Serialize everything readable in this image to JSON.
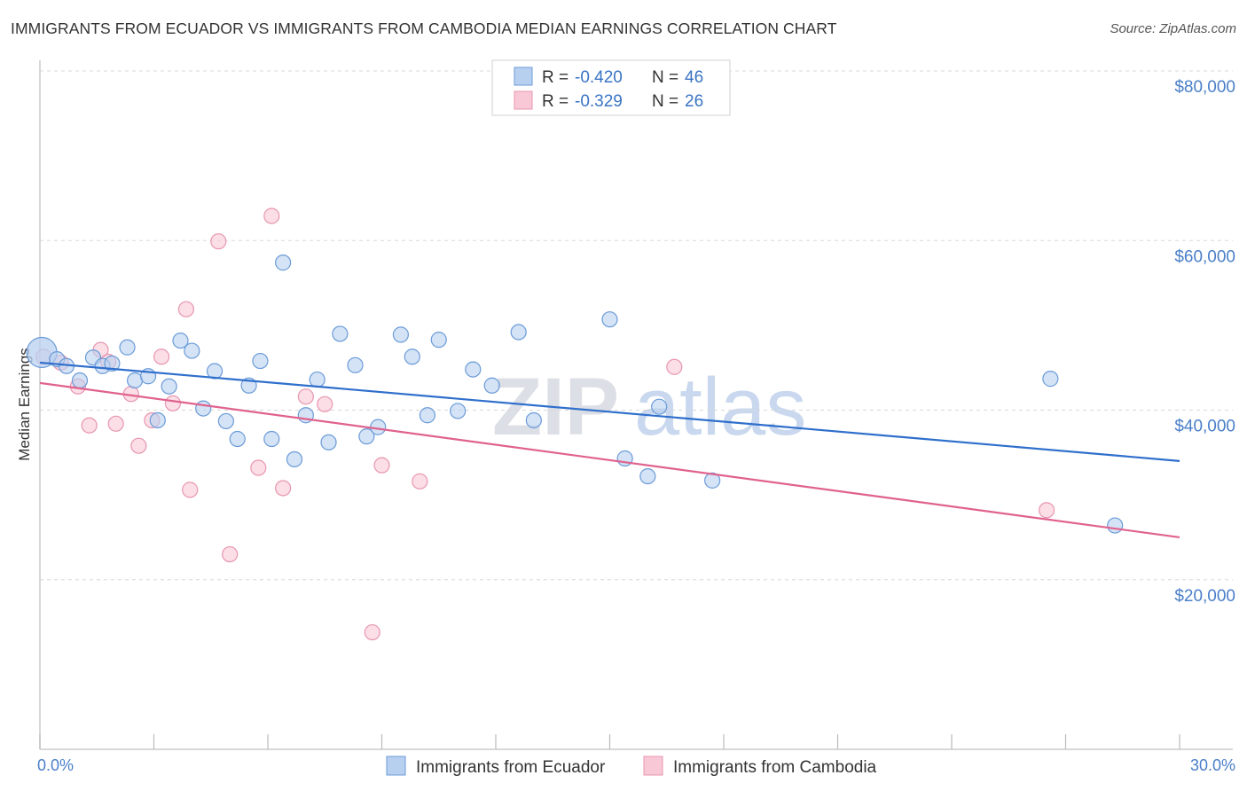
{
  "header": {
    "title": "IMMIGRANTS FROM ECUADOR VS IMMIGRANTS FROM CAMBODIA MEDIAN EARNINGS CORRELATION CHART",
    "source": "Source: ZipAtlas.com"
  },
  "watermark": {
    "zip": "ZIP",
    "atlas": "atlas"
  },
  "legend": {
    "ecuador": {
      "r_label": "R =",
      "r_value": "-0.420",
      "n_label": "N =",
      "n_value": "46"
    },
    "cambodia": {
      "r_label": "R =",
      "r_value": "-0.329",
      "n_label": "N =",
      "n_value": "26"
    }
  },
  "colors": {
    "ecuador_fill": "#b8d0f0",
    "ecuador_stroke": "#6b9bd8",
    "ecuador_line": "#2f6fcc",
    "cambodia_fill": "#f8c8d6",
    "cambodia_stroke": "#e896b0",
    "cambodia_line": "#e0628e",
    "axis_text": "#4a7fc9",
    "grid": "#d8d8d8"
  },
  "chart_data": {
    "type": "scatter",
    "title": "IMMIGRANTS FROM ECUADOR VS IMMIGRANTS FROM CAMBODIA MEDIAN EARNINGS CORRELATION CHART",
    "xlabel": "",
    "ylabel": "Median Earnings",
    "xlim": [
      0,
      30
    ],
    "ylim": [
      0,
      80000
    ],
    "x_tick_labels": [
      "0.0%",
      "30.0%"
    ],
    "y_ticks": [
      20000,
      40000,
      60000,
      80000
    ],
    "y_tick_labels": [
      "$20,000",
      "$40,000",
      "$60,000",
      "$80,000"
    ],
    "grid": true,
    "legend_position": "bottom",
    "series": [
      {
        "name": "Immigrants from Ecuador",
        "points": [
          [
            0.05,
            46800
          ],
          [
            0.45,
            46000
          ],
          [
            0.7,
            45200
          ],
          [
            1.05,
            43500
          ],
          [
            1.4,
            46200
          ],
          [
            1.65,
            45200
          ],
          [
            1.9,
            45500
          ],
          [
            2.3,
            47400
          ],
          [
            2.5,
            43500
          ],
          [
            2.85,
            44000
          ],
          [
            3.1,
            38800
          ],
          [
            3.4,
            42800
          ],
          [
            3.7,
            48200
          ],
          [
            4.0,
            47000
          ],
          [
            4.3,
            40200
          ],
          [
            4.6,
            44600
          ],
          [
            4.9,
            38700
          ],
          [
            5.2,
            36600
          ],
          [
            5.5,
            42900
          ],
          [
            5.8,
            45800
          ],
          [
            6.1,
            36600
          ],
          [
            6.4,
            57400
          ],
          [
            6.7,
            34200
          ],
          [
            7.0,
            39400
          ],
          [
            7.3,
            43600
          ],
          [
            7.6,
            36200
          ],
          [
            7.9,
            49000
          ],
          [
            8.3,
            45300
          ],
          [
            8.6,
            36900
          ],
          [
            8.9,
            38000
          ],
          [
            9.5,
            48900
          ],
          [
            9.8,
            46300
          ],
          [
            10.2,
            39400
          ],
          [
            10.5,
            48300
          ],
          [
            11.0,
            39900
          ],
          [
            11.4,
            44800
          ],
          [
            11.9,
            42900
          ],
          [
            12.6,
            49200
          ],
          [
            13.0,
            38800
          ],
          [
            15.0,
            50700
          ],
          [
            15.4,
            34300
          ],
          [
            16.0,
            32200
          ],
          [
            16.3,
            40400
          ],
          [
            17.7,
            31700
          ],
          [
            26.6,
            43700
          ],
          [
            28.3,
            26400
          ]
        ]
      },
      {
        "name": "Immigrants from Cambodia",
        "points": [
          [
            0.1,
            46300
          ],
          [
            0.55,
            45600
          ],
          [
            1.0,
            42800
          ],
          [
            1.3,
            38200
          ],
          [
            1.6,
            47100
          ],
          [
            1.8,
            45700
          ],
          [
            2.0,
            38400
          ],
          [
            2.4,
            41900
          ],
          [
            2.6,
            35800
          ],
          [
            2.95,
            38800
          ],
          [
            3.2,
            46300
          ],
          [
            3.5,
            40800
          ],
          [
            3.85,
            51900
          ],
          [
            3.95,
            30600
          ],
          [
            4.7,
            59900
          ],
          [
            5.0,
            23000
          ],
          [
            5.75,
            33200
          ],
          [
            6.1,
            62900
          ],
          [
            6.4,
            30800
          ],
          [
            7.0,
            41600
          ],
          [
            7.5,
            40700
          ],
          [
            8.75,
            13800
          ],
          [
            9.0,
            33500
          ],
          [
            10.0,
            31600
          ],
          [
            16.7,
            45100
          ],
          [
            26.5,
            28200
          ]
        ]
      }
    ],
    "trend_lines": [
      {
        "series": "Immigrants from Ecuador",
        "x": [
          0,
          30
        ],
        "y": [
          45600,
          34000
        ]
      },
      {
        "series": "Immigrants from Cambodia",
        "x": [
          0,
          30
        ],
        "y": [
          43200,
          25000
        ]
      }
    ]
  },
  "bottom_legend": {
    "ecuador_label": "Immigrants from Ecuador",
    "cambodia_label": "Immigrants from Cambodia"
  }
}
